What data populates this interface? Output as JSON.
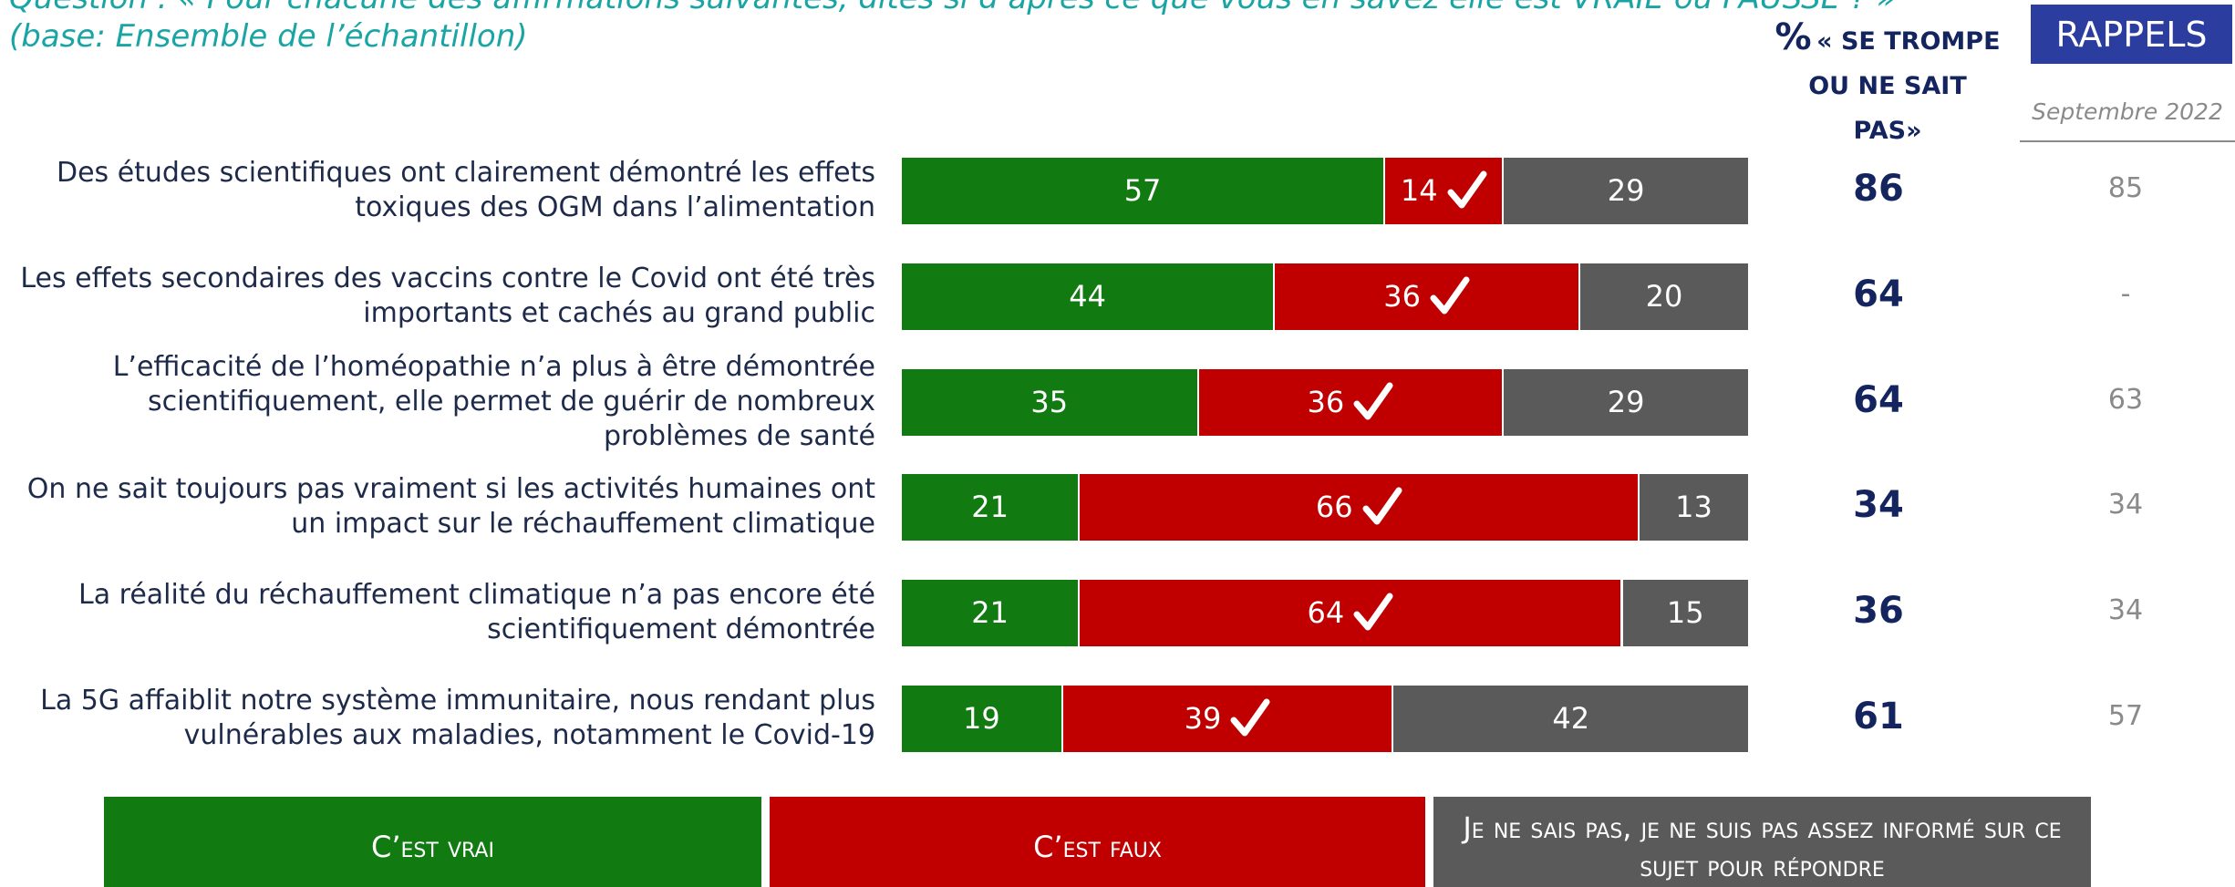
{
  "chart_data": {
    "type": "bar",
    "orientation": "horizontal",
    "stacked": true,
    "title": "Question : « Pour chacune des affirmations suivantes, dites si d’après ce que vous en savez elle est VRAIE ou FAUSSE ? »",
    "subtitle": "(base: Ensemble de l’échantillon)",
    "categories": [
      "Des études scientifiques ont clairement démontré les effets toxiques des OGM dans l’alimentation",
      "Les effets secondaires des vaccins contre le Covid ont été très importants et cachés au grand public",
      "L’efficacité de l’homéopathie n’a plus à être démontrée scientifiquement, elle permet de guérir de nombreux problèmes de santé",
      "On ne sait toujours pas vraiment si les activités humaines ont un impact sur le réchauffement climatique",
      "La réalité du réchauffement climatique n’a pas encore été scientifiquement démontrée",
      "La 5G affaiblit notre système immunitaire, nous rendant plus vulnérables aux maladies, notamment le Covid-19"
    ],
    "series": [
      {
        "name": "C’est vrai",
        "color": "#117a11",
        "values": [
          57,
          44,
          35,
          21,
          21,
          19
        ]
      },
      {
        "name": "C’est faux",
        "color": "#c00000",
        "values": [
          14,
          36,
          36,
          66,
          64,
          39
        ]
      },
      {
        "name": "Je ne sais pas, je ne suis pas assez informé sur ce sujet pour répondre",
        "color": "#5a5a5a",
        "values": [
          29,
          20,
          29,
          13,
          15,
          42
        ]
      }
    ],
    "extra_column": {
      "symbol": "%",
      "title": "« SE TROMPE OU NE SAIT PAS»",
      "values": [
        86,
        64,
        64,
        34,
        36,
        61
      ]
    },
    "recall_column": {
      "title": "RAPPELS",
      "subtitle": "Septembre 2022",
      "values": [
        85,
        null,
        63,
        34,
        34,
        57
      ],
      "value_labels": [
        "85",
        "-",
        "63",
        "34",
        "34",
        "57"
      ]
    }
  }
}
